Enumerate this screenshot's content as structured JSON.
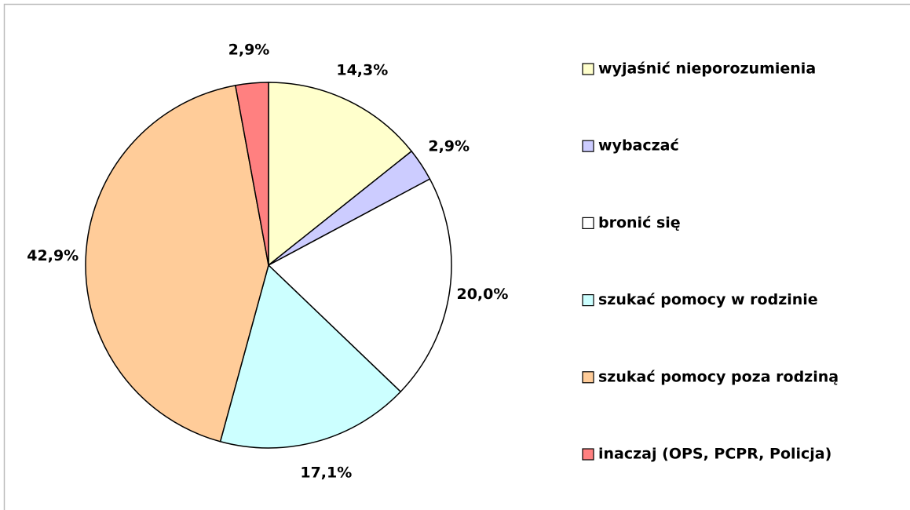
{
  "chart_data": {
    "type": "pie",
    "categories": [
      "wyjaśnić nieporozumienia",
      "wybaczać",
      "bronić się",
      "szukać pomocy w rodzinie",
      "szukać pomocy poza rodziną",
      "inaczaj (OPS, PCPR, Policja)"
    ],
    "values": [
      14.3,
      2.9,
      20.0,
      17.1,
      42.9,
      2.9
    ],
    "value_labels": [
      "14,3%",
      "2,9%",
      "20,0%",
      "17,1%",
      "42,9%",
      "2,9%"
    ],
    "colors": [
      "#ffffcc",
      "#ccccff",
      "#ffffff",
      "#ccffff",
      "#ffcc99",
      "#ff8080"
    ],
    "legend": "right"
  }
}
